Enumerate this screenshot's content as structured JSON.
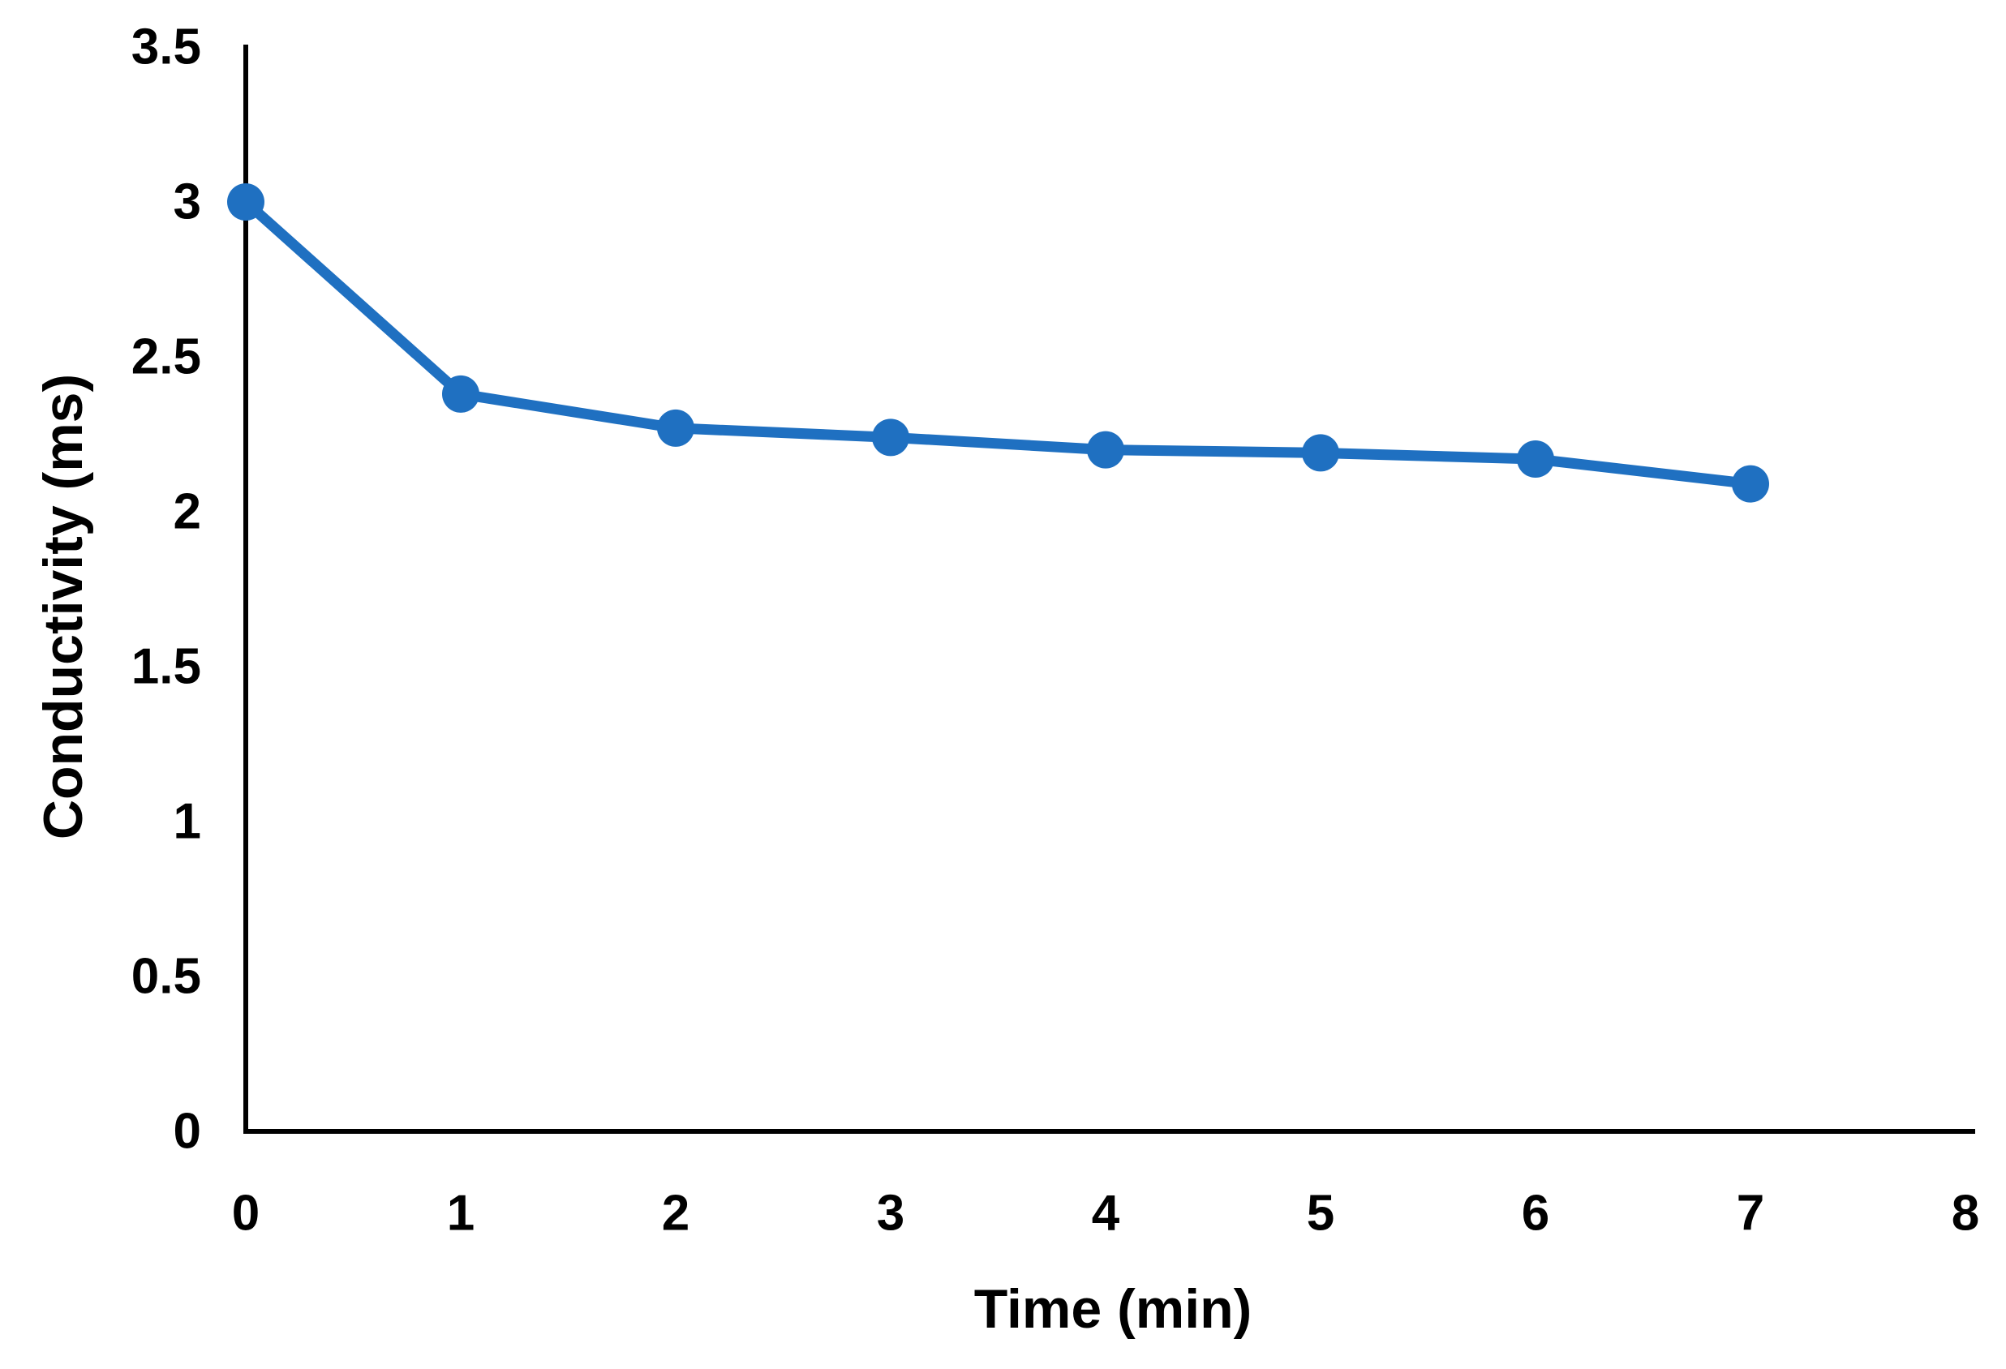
{
  "chart_data": {
    "type": "line",
    "title": "",
    "x": [
      0,
      1,
      2,
      3,
      4,
      5,
      6,
      7
    ],
    "series": [
      {
        "name": "Conductivity",
        "values": [
          3.0,
          2.38,
          2.27,
          2.24,
          2.2,
          2.19,
          2.17,
          2.09
        ],
        "color": "#1F70C1",
        "marker": "circle",
        "line_style": "solid"
      }
    ],
    "xlabel": "Time (min)",
    "ylabel": "Conductivity (ms)",
    "xlim": [
      0,
      8
    ],
    "ylim": [
      0,
      3.5
    ],
    "xticks": [
      0,
      1,
      2,
      3,
      4,
      5,
      6,
      7,
      8
    ],
    "xtick_labels": [
      "0",
      "1",
      "2",
      "3",
      "4",
      "5",
      "6",
      "7",
      "8"
    ],
    "yticks": [
      0,
      0.5,
      1,
      1.5,
      2,
      2.5,
      3,
      3.5
    ],
    "ytick_labels": [
      "0",
      "0.5",
      "1",
      "1.5",
      "2",
      "2.5",
      "3",
      "3.5"
    ],
    "grid": false,
    "legend": "none",
    "axis_color": "#000000",
    "tick_label_color": "#000000",
    "background_color": "#FFFFFF"
  }
}
